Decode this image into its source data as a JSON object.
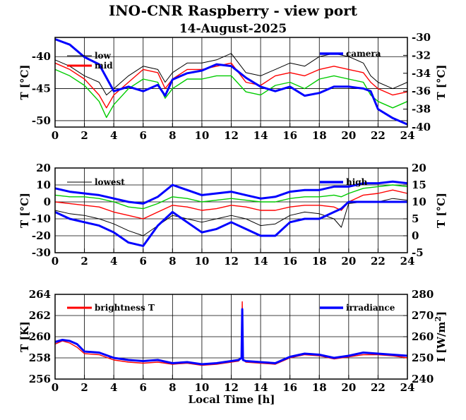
{
  "title": "INO-CNR Raspberry - view port",
  "subtitle": "14-August-2025",
  "xlabel": "Local Time [h]",
  "colors": {
    "black": "#000000",
    "red": "#ff0000",
    "green": "#00cc00",
    "blue": "#0000ff"
  },
  "chart_data": [
    {
      "type": "line",
      "xlabel": "",
      "ylabel": "T [°C]",
      "ylabel_right": "T [°C]",
      "xlim": [
        0,
        24
      ],
      "ylim": [
        -51,
        -37
      ],
      "ylim_right": [
        -40,
        -30
      ],
      "x_ticks": [
        "0",
        "2",
        "4",
        "6",
        "8",
        "10",
        "12",
        "14",
        "16",
        "18",
        "20",
        "22",
        "24"
      ],
      "y_ticks": [
        "-50",
        "-45",
        "-40"
      ],
      "y_ticks_right": [
        "-40",
        "-38",
        "-36",
        "-34",
        "-32",
        "-30"
      ],
      "grid": true,
      "x": [
        0,
        1,
        2,
        3,
        3.5,
        4,
        5,
        6,
        7,
        7.5,
        8,
        9,
        10,
        11,
        12,
        13,
        14,
        15,
        16,
        17,
        18,
        19,
        20,
        21,
        21.5,
        22,
        23,
        24
      ],
      "series": [
        {
          "name": "low",
          "color": "#000000",
          "axis": "left",
          "values": [
            -40.5,
            -41.5,
            -43,
            -44,
            -46,
            -45,
            -43,
            -41.5,
            -42,
            -44,
            -42.5,
            -41,
            -41,
            -40.5,
            -39.5,
            -42.5,
            -43,
            -42,
            -41,
            -41.5,
            -40,
            -39.5,
            -40,
            -41,
            -43,
            -44,
            -45,
            -44
          ]
        },
        {
          "name": "mid",
          "color": "#ff0000",
          "axis": "left",
          "values": [
            -41,
            -42,
            -43.5,
            -46,
            -48,
            -46,
            -44,
            -42,
            -42.5,
            -45,
            -43.5,
            -42,
            -42,
            -41.5,
            -41,
            -44,
            -44.5,
            -43,
            -42.5,
            -43,
            -42,
            -41.5,
            -42,
            -42.5,
            -44,
            -45,
            -46,
            -45.5
          ]
        },
        {
          "name": "",
          "color": "#00cc00",
          "axis": "left",
          "values": [
            -42,
            -43,
            -44.5,
            -47,
            -49.5,
            -47.5,
            -45,
            -43.5,
            -44,
            -46.5,
            -45,
            -43.5,
            -43.5,
            -43,
            -43,
            -45.5,
            -46,
            -44.5,
            -44,
            -45,
            -43.5,
            -43,
            -43.5,
            -44,
            -46,
            -47,
            -48,
            -47
          ]
        },
        {
          "name": "camera",
          "color": "#0000ff",
          "axis": "right",
          "values": [
            -30.2,
            -30.8,
            -32.2,
            -33,
            -34.5,
            -36,
            -35.5,
            -36,
            -35.3,
            -36.5,
            -34.7,
            -34,
            -33.7,
            -33,
            -33.2,
            -34.5,
            -35.5,
            -36,
            -35.5,
            -36.5,
            -36.2,
            -35.5,
            -35.5,
            -35.7,
            -36,
            -38,
            -39,
            -39.7
          ]
        }
      ],
      "legend": [
        "low",
        "mid",
        "camera"
      ]
    },
    {
      "type": "line",
      "xlabel": "",
      "ylabel": "T [°C]",
      "ylabel_right": "T [°C]",
      "xlim": [
        0,
        24
      ],
      "ylim": [
        -30,
        20
      ],
      "ylim_right": [
        -5,
        20
      ],
      "x_ticks": [
        "0",
        "2",
        "4",
        "6",
        "8",
        "10",
        "12",
        "14",
        "16",
        "18",
        "20",
        "22",
        "24"
      ],
      "y_ticks": [
        "-30",
        "-20",
        "-10",
        "0",
        "10",
        "20"
      ],
      "y_ticks_right": [
        "-5",
        "0",
        "5",
        "10",
        "15",
        "20"
      ],
      "grid": true,
      "x": [
        0,
        1,
        2,
        3,
        4,
        5,
        6,
        7,
        8,
        9,
        10,
        11,
        12,
        13,
        14,
        15,
        16,
        17,
        18,
        19,
        19.5,
        20,
        21,
        22,
        23,
        24
      ],
      "series": [
        {
          "name": "lowest",
          "color": "#000000",
          "axis": "left",
          "values": [
            -5,
            -7,
            -8,
            -10,
            -13,
            -17,
            -20,
            -14,
            -8,
            -10,
            -12,
            -10,
            -8,
            -10,
            -14,
            -13,
            -8,
            -6,
            -7,
            -10,
            -15,
            -1,
            0,
            0,
            2,
            1
          ]
        },
        {
          "name": "",
          "color": "#ff0000",
          "axis": "left",
          "values": [
            0,
            -1,
            -2,
            -3,
            -6,
            -8,
            -10,
            -6,
            -2,
            -3,
            -5,
            -4,
            -2,
            -3,
            -5,
            -5,
            -3,
            -2,
            -2,
            -3,
            -5,
            0,
            4,
            5,
            7,
            5
          ]
        },
        {
          "name": "",
          "color": "#00cc00",
          "axis": "left",
          "values": [
            4,
            3,
            3,
            2,
            0,
            -3,
            -4,
            -1,
            3,
            2,
            0,
            1,
            2,
            1,
            0,
            0,
            2,
            3,
            3,
            4,
            3,
            5,
            8,
            9,
            10,
            9
          ]
        },
        {
          "name": "",
          "color": "#0000ff",
          "axis": "left",
          "values": [
            8,
            6,
            5,
            4,
            2,
            0,
            -1,
            3,
            10,
            7,
            4,
            5,
            6,
            4,
            2,
            3,
            6,
            7,
            7,
            9,
            9,
            9,
            11,
            11,
            12,
            11
          ]
        },
        {
          "name": "high",
          "color": "#0000ff",
          "axis": "right",
          "values": [
            7,
            5,
            4,
            3,
            1,
            -2,
            -3,
            3,
            7,
            4,
            1,
            2,
            4,
            2,
            0,
            0,
            4,
            5,
            5,
            7,
            8,
            10,
            10,
            10,
            10,
            10
          ]
        }
      ],
      "legend": [
        "lowest",
        "high"
      ]
    },
    {
      "type": "line",
      "xlabel": "Local Time [h]",
      "ylabel": "T [K]",
      "ylabel_right": "I [W/m2]",
      "xlim": [
        0,
        24
      ],
      "ylim": [
        256,
        264
      ],
      "ylim_right": [
        240,
        280
      ],
      "x_ticks": [
        "0",
        "2",
        "4",
        "6",
        "8",
        "10",
        "12",
        "14",
        "16",
        "18",
        "20",
        "22",
        "24"
      ],
      "y_ticks": [
        "256",
        "258",
        "260",
        "262",
        "264"
      ],
      "y_ticks_right": [
        "240",
        "250",
        "260",
        "270",
        "280"
      ],
      "grid": true,
      "x": [
        0,
        0.5,
        1,
        1.5,
        2,
        3,
        4,
        5,
        6,
        7,
        8,
        9,
        10,
        11,
        12,
        12.5,
        12.7,
        12.75,
        12.8,
        13,
        14,
        15,
        16,
        17,
        18,
        19,
        20,
        21,
        22,
        23,
        24
      ],
      "series": [
        {
          "name": "brightness T",
          "color": "#ff0000",
          "axis": "left",
          "values": [
            259.3,
            259.6,
            259.4,
            259.0,
            258.4,
            258.3,
            257.8,
            257.6,
            257.5,
            257.6,
            257.4,
            257.5,
            257.3,
            257.4,
            257.6,
            257.7,
            258.0,
            263.3,
            257.8,
            257.6,
            257.5,
            257.4,
            258.0,
            258.3,
            258.2,
            257.9,
            258.1,
            258.3,
            258.3,
            258.2,
            258.0
          ]
        },
        {
          "name": "irradiance",
          "color": "#0000ff",
          "axis": "right",
          "values": [
            257.5,
            258.5,
            258,
            256.5,
            253,
            252.5,
            250,
            249,
            248.5,
            249,
            247.5,
            248,
            247,
            247.5,
            248.5,
            249,
            250,
            273,
            249,
            248.5,
            248,
            247.5,
            250.5,
            252,
            251.5,
            250,
            251,
            252.5,
            252,
            251.5,
            251
          ]
        }
      ],
      "legend": [
        "brightness T",
        "irradiance"
      ]
    }
  ]
}
